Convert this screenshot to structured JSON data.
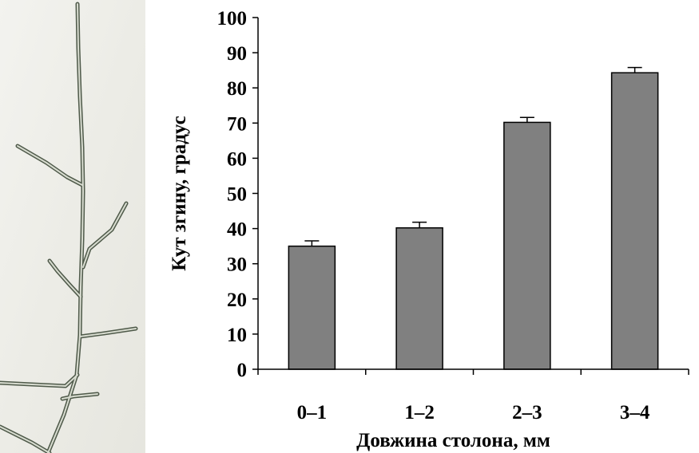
{
  "figure": {
    "photo_icon": "branching-stolon-micrograph",
    "colors": {
      "bar_fill": "#808080",
      "bar_stroke": "#000000",
      "axis": "#000000",
      "photo_background": "#eeeeea",
      "stolon_dark": "#4f5a4a",
      "stolon_light": "#d8dcd0"
    }
  },
  "chart_data": {
    "type": "bar",
    "categories": [
      "0–1",
      "1–2",
      "2–3",
      "3–4"
    ],
    "values": [
      35,
      40.2,
      70.2,
      84.3
    ],
    "errors": [
      1.5,
      1.6,
      1.4,
      1.5
    ],
    "title": "",
    "xlabel": "Довжина столона, мм",
    "ylabel": "Кут згину, градус",
    "ylim": [
      0,
      100
    ],
    "yticks": [
      "0",
      "10",
      "20",
      "30",
      "40",
      "50",
      "60",
      "70",
      "80",
      "90",
      "100"
    ],
    "grid": false,
    "legend": "none"
  }
}
